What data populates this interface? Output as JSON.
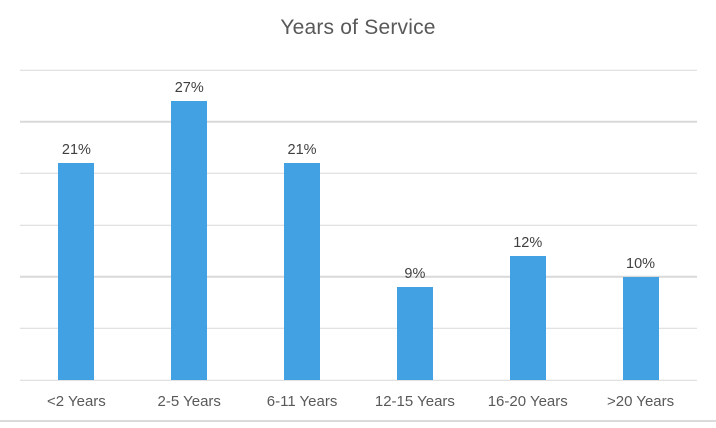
{
  "chart_data": {
    "type": "bar",
    "title": "Years of Service",
    "categories": [
      "<2 Years",
      "2-5 Years",
      "6-11 Years",
      "12-15 Years",
      "16-20 Years",
      ">20 Years"
    ],
    "values": [
      21,
      27,
      21,
      9,
      12,
      10
    ],
    "data_labels": [
      "21%",
      "27%",
      "21%",
      "9%",
      "12%",
      "10%"
    ],
    "xlabel": "",
    "ylabel": "",
    "ylim": [
      0,
      30
    ],
    "gridline_step": 5,
    "grid": true,
    "y_tick_labels_visible": false,
    "legend": "none",
    "colors": {
      "bar": "#41A1E2",
      "gridline": "#D9D9D9",
      "title": "#595959",
      "data_label": "#404040",
      "category_label": "#595959",
      "bottom_border": "#DADADA",
      "background": "#FFFFFF"
    }
  }
}
